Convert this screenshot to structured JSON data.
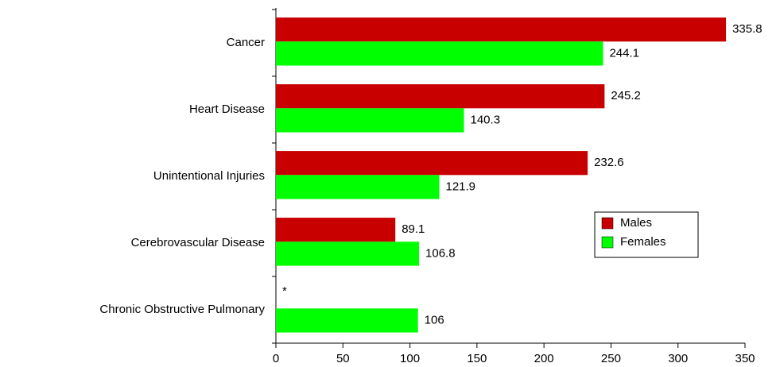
{
  "chart_data": {
    "type": "hbar",
    "categories": [
      "Cancer",
      "Heart Disease",
      "Unintentional Injuries",
      "Cerebrovascular Disease",
      "Chronic Obstructive Pulmonary"
    ],
    "series": [
      {
        "name": "Males",
        "color": "#c80000",
        "values": [
          335.8,
          245.2,
          232.6,
          89.1,
          null
        ],
        "value_labels": [
          "335.8",
          "245.2",
          "232.6",
          "89.1",
          "*"
        ]
      },
      {
        "name": "Females",
        "color": "#00ff00",
        "values": [
          244.1,
          140.3,
          121.9,
          106.8,
          106
        ]
      }
    ],
    "xlim": [
      0,
      350
    ],
    "xticks": [
      0,
      50,
      100,
      150,
      200,
      250,
      300,
      350
    ],
    "grid": false,
    "legend": "lower right"
  }
}
